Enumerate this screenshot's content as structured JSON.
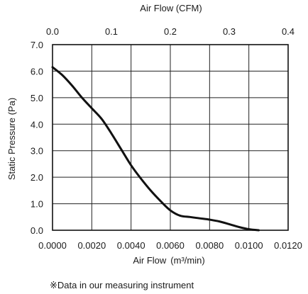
{
  "chart_data": {
    "type": "line",
    "top_axis": {
      "label": "Air Flow (CFM)",
      "ticks": [
        "0.0",
        "0.1",
        "0.2",
        "0.3",
        "0.4"
      ]
    },
    "x_axis": {
      "label": "Air Flow",
      "unit": "(m³/min)",
      "range": [
        0,
        0.012
      ],
      "ticks": [
        "0.0000",
        "0.0020",
        "0.0040",
        "0.0060",
        "0.0080",
        "0.0100",
        "0.0120"
      ]
    },
    "y_axis": {
      "label": "Static Pressure (Pa)",
      "range": [
        0,
        7
      ],
      "ticks": [
        "0.0",
        "1.0",
        "2.0",
        "3.0",
        "4.0",
        "5.0",
        "6.0",
        "7.0"
      ]
    },
    "grid": true,
    "series": [
      {
        "color": "#111111",
        "x": [
          0.0,
          0.0005,
          0.001,
          0.0015,
          0.002,
          0.0025,
          0.003,
          0.0035,
          0.004,
          0.0045,
          0.005,
          0.0055,
          0.006,
          0.0065,
          0.007,
          0.0075,
          0.008,
          0.0085,
          0.009,
          0.0095,
          0.01,
          0.0105
        ],
        "y": [
          6.15,
          5.85,
          5.45,
          5.0,
          4.6,
          4.2,
          3.65,
          3.05,
          2.45,
          1.95,
          1.5,
          1.1,
          0.75,
          0.55,
          0.5,
          0.45,
          0.4,
          0.33,
          0.23,
          0.12,
          0.04,
          0.0
        ]
      }
    ]
  },
  "footnote": "※Data in our measuring instrument"
}
